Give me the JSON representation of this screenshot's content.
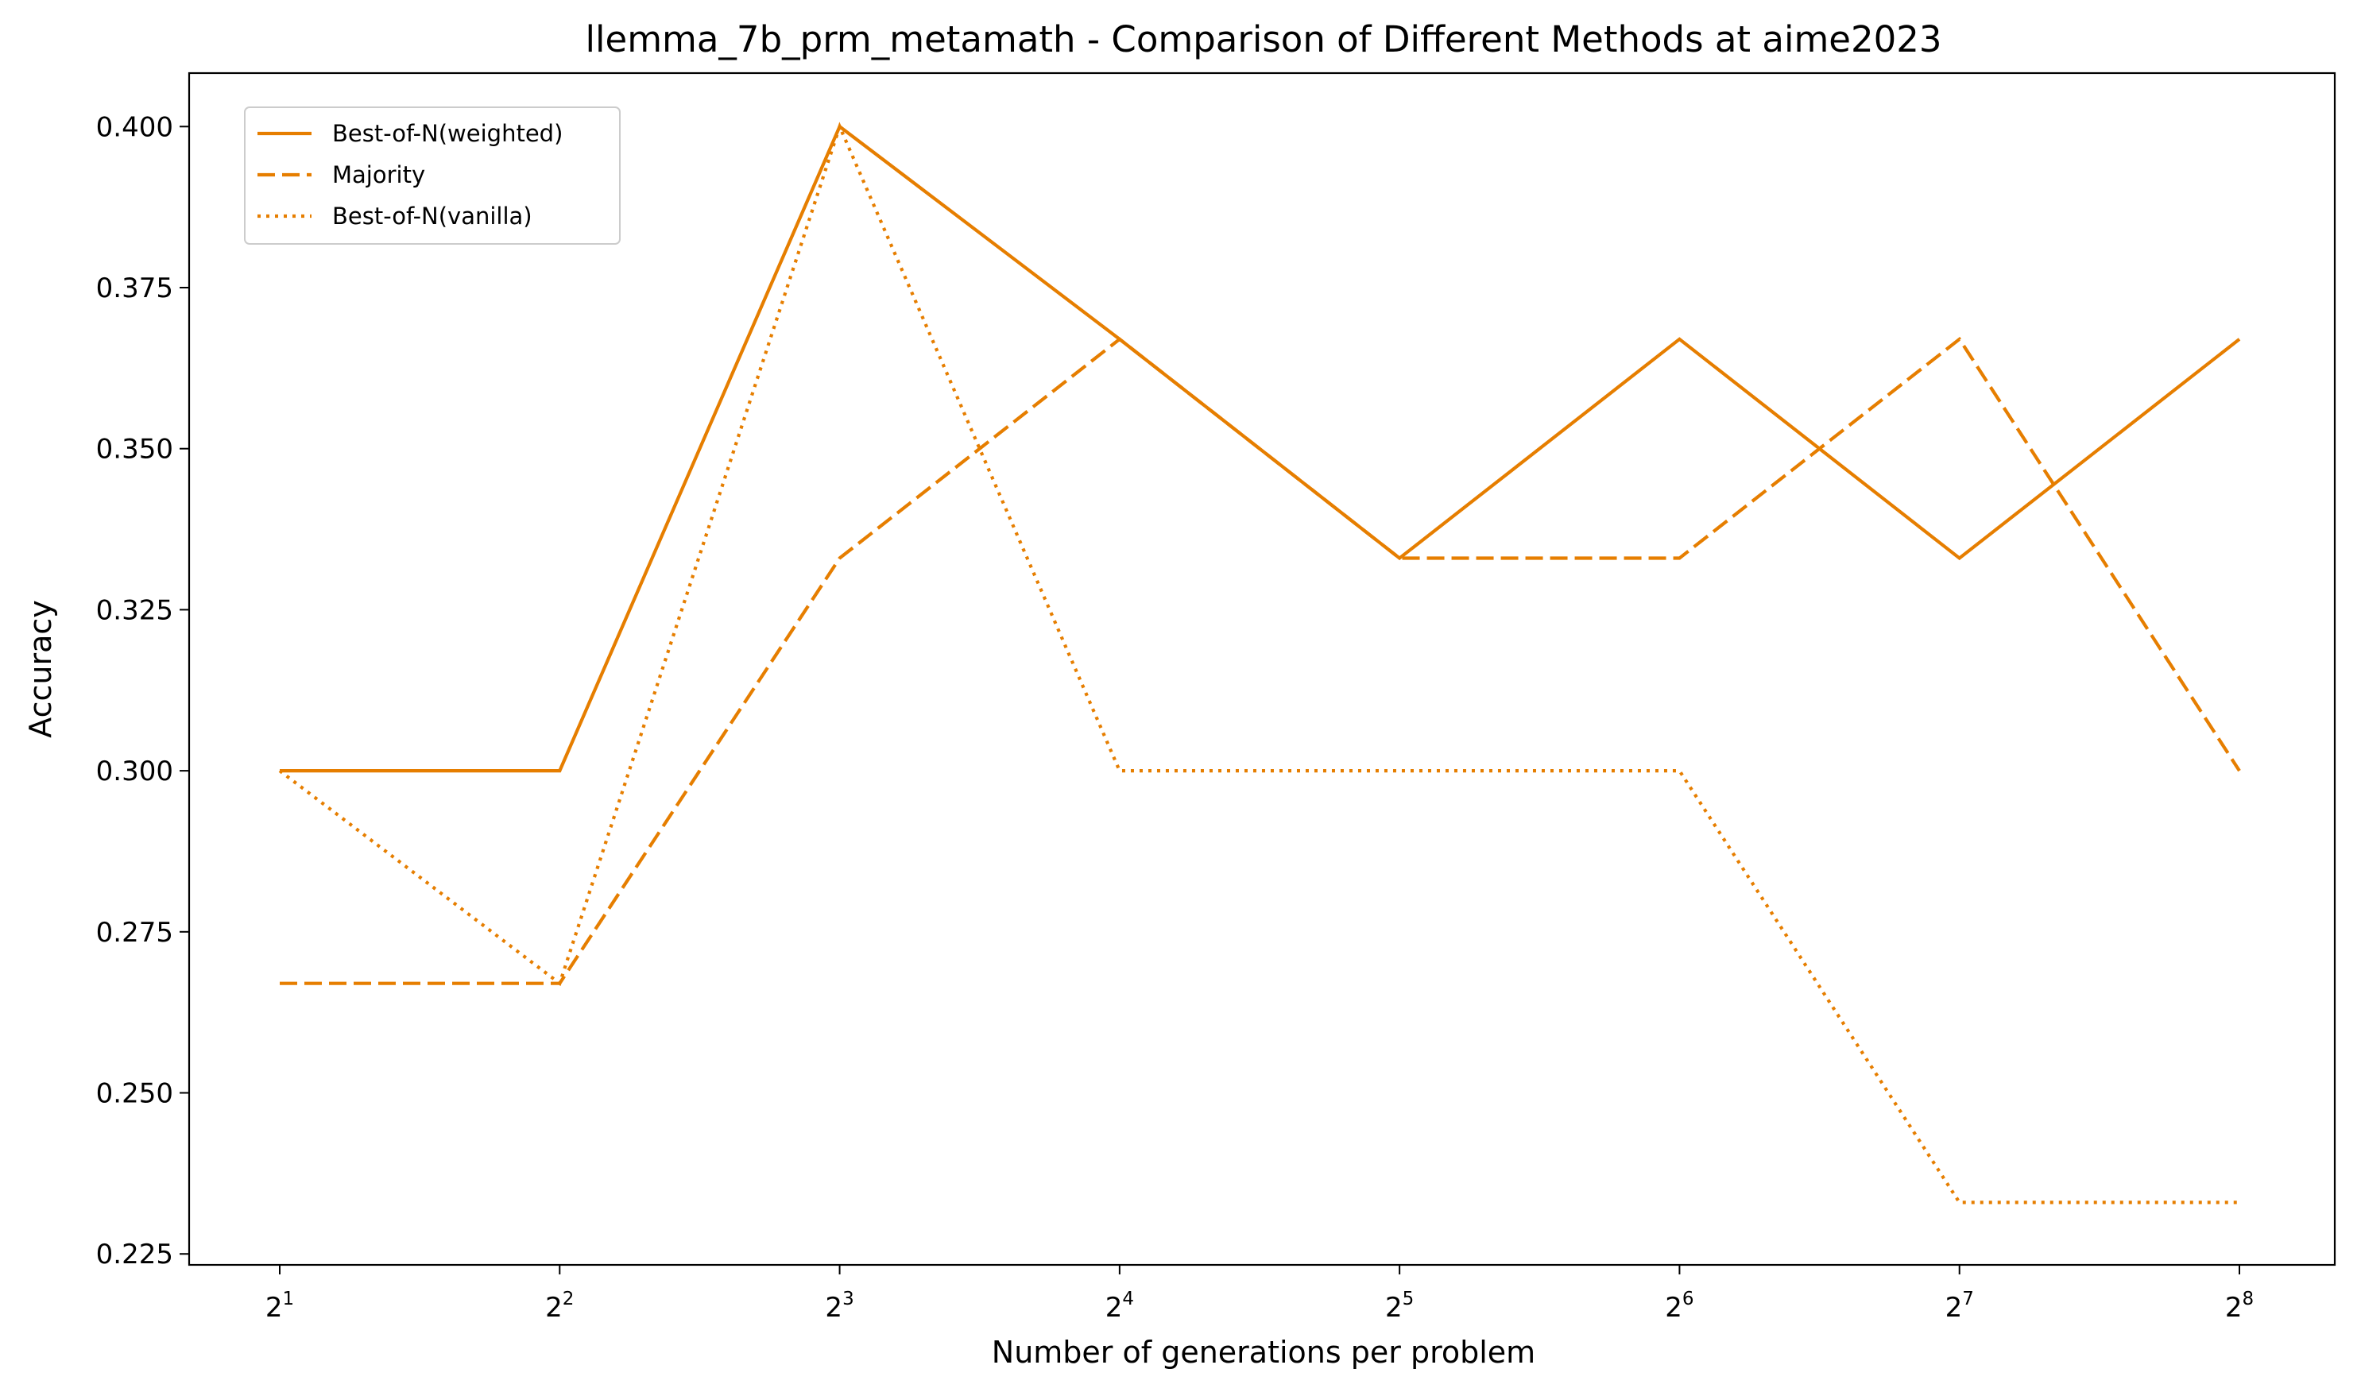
{
  "chart_data": {
    "type": "line",
    "title": "llemma_7b_prm_metamath - Comparison of Different Methods at aime2023",
    "xlabel": "Number of generations per problem",
    "ylabel": "Accuracy",
    "x_base": "2",
    "x_exponents": [
      "1",
      "2",
      "3",
      "4",
      "5",
      "6",
      "7",
      "8"
    ],
    "x": [
      2,
      4,
      8,
      16,
      32,
      64,
      128,
      256
    ],
    "x_scale": "log2",
    "ylim": [
      0.2233,
      0.4083
    ],
    "yticks": [
      "0.225",
      "0.250",
      "0.275",
      "0.300",
      "0.325",
      "0.350",
      "0.375",
      "0.400"
    ],
    "grid": false,
    "legend_position": "top-left",
    "series": [
      {
        "name": "Best-of-N(weighted)",
        "style": "solid",
        "color": "#e67e00",
        "values": [
          0.3,
          0.3,
          0.4,
          0.367,
          0.333,
          0.367,
          0.333,
          0.367
        ]
      },
      {
        "name": "Majority",
        "style": "dashed",
        "color": "#e67e00",
        "values": [
          0.267,
          0.267,
          0.333,
          0.367,
          0.333,
          0.333,
          0.367,
          0.3
        ]
      },
      {
        "name": "Best-of-N(vanilla)",
        "style": "dotted",
        "color": "#e67e00",
        "values": [
          0.3,
          0.267,
          0.4,
          0.3,
          0.3,
          0.3,
          0.233,
          0.233
        ]
      }
    ]
  }
}
